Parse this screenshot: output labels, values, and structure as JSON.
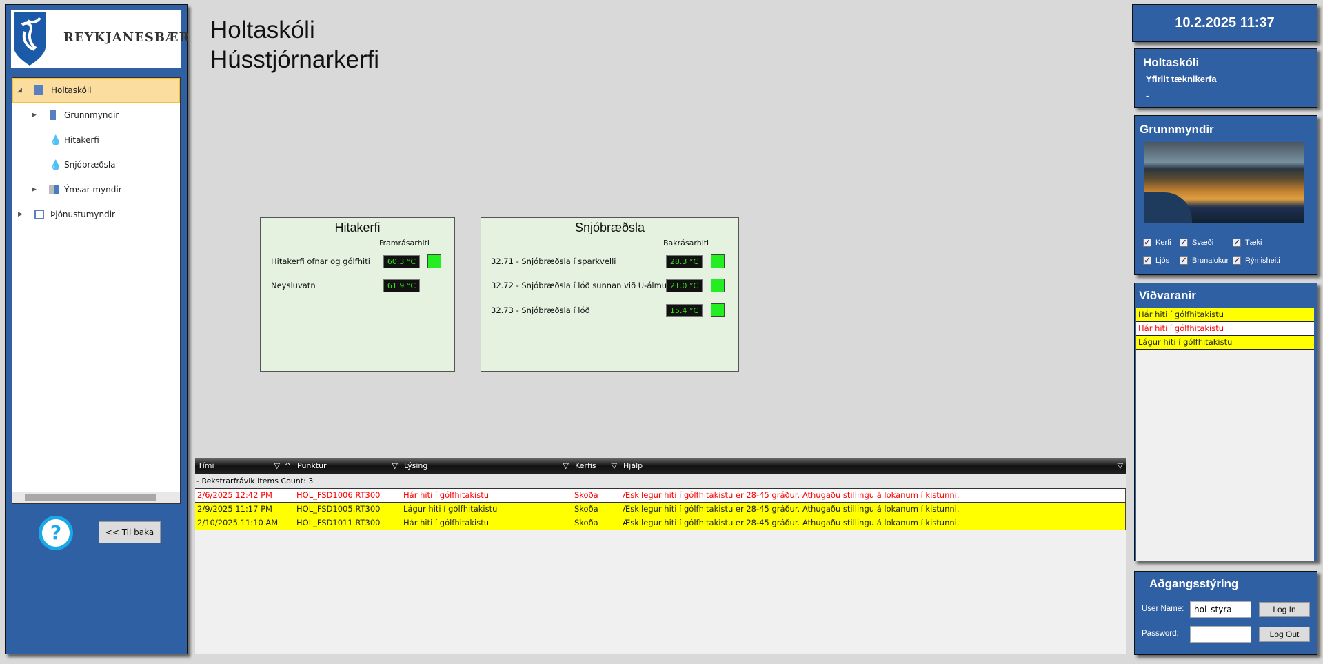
{
  "logo": {
    "text": "REYKJANESBÆR"
  },
  "tree": [
    {
      "label": "Holtaskóli",
      "icon": "building-icon",
      "selected": true
    },
    {
      "label": "Grunnmyndir",
      "icon": "floorplan-icon"
    },
    {
      "label": "Hitakerfi",
      "icon": "water-drop-icon"
    },
    {
      "label": "Snjóbræðsla",
      "icon": "water-drop-icon"
    },
    {
      "label": "Ýmsar myndir",
      "icon": "tiles-icon"
    },
    {
      "label": "Þjónustumyndir",
      "icon": "monitor-icon"
    }
  ],
  "left": {
    "help": "?",
    "back": "<< Til baka"
  },
  "title": {
    "line1": "Holtaskóli",
    "line2": "Hússtjórnarkerfi"
  },
  "hitakerfi": {
    "title": "Hitakerfi",
    "col": "Framrásarhiti",
    "rows": [
      {
        "label": "Hitakerfi ofnar og gólfhiti",
        "value": "60.3 °C",
        "status": "ok"
      },
      {
        "label": "Neysluvatn",
        "value": "61.9 °C"
      }
    ]
  },
  "snjo": {
    "title": "Snjóbræðsla",
    "col": "Bakrásarhiti",
    "rows": [
      {
        "label": "32.71 - Snjóbræðsla í sparkvelli",
        "value": "28.3 °C",
        "status": "ok"
      },
      {
        "label": "32.72 - Snjóbræðsla í lóð sunnan við U-álmu",
        "value": "21.0 °C",
        "status": "ok"
      },
      {
        "label": "32.73 - Snjóbræðsla í lóð",
        "value": "15.4 °C",
        "status": "ok"
      }
    ]
  },
  "grid": {
    "columns": [
      "Tími",
      "Punktur",
      "Lýsing",
      "Kerfis",
      "Hjálp"
    ],
    "group": "- Rekstrarfrávik Items Count: 3",
    "rows": [
      [
        "2/6/2025 12:42 PM",
        "HOL_FSD1006.RT300",
        "Hár hiti í gólfhitakistu",
        "Skoða",
        "Æskilegur hiti í gólfhitakistu er 28-45 gráður. Athugaðu stillingu á lokanum í kistunni."
      ],
      [
        "2/9/2025 11:17 PM",
        "HOL_FSD1005.RT300",
        "Lágur hiti í gólfhitakistu",
        "Skoða",
        "Æskilegur hiti í gólfhitakistu er 28-45 gráður. Athugaðu stillingu á lokanum í kistunni."
      ],
      [
        "2/10/2025 11:10 AM",
        "HOL_FSD1011.RT300",
        "Hár hiti í gólfhitakistu",
        "Skoða",
        "Æskilegur hiti í gólfhitakistu er 28-45 gráður. Athugaðu stillingu á lokanum í kistunni."
      ]
    ]
  },
  "right": {
    "datetime": "10.2.2025 11:37",
    "info": {
      "title": "Holtaskóli",
      "subtitle": "Yfirlit tæknikerfa",
      "detail": "-"
    },
    "grunn": {
      "title": "Grunnmyndir",
      "checks": [
        "Kerfi",
        "Svæði",
        "Tæki",
        "Ljós",
        "Brunalokur",
        "Rýmisheiti"
      ]
    },
    "vidv": {
      "title": "Viðvaranir",
      "items": [
        "Hár hiti í gólfhitakistu",
        "Hár hiti í gólfhitakistu",
        "Lágur hiti í gólfhitakistu"
      ]
    },
    "acc": {
      "title": "Aðgangsstýring",
      "user_label": "User Name:",
      "user_value": "hol_styra",
      "pass_label": "Password:",
      "login": "Log In",
      "logout": "Log Out"
    }
  },
  "colors": {
    "panel": "#3060a4",
    "warn": "#ffff00",
    "alarm": "#ff0000",
    "ok": "#22ee22"
  }
}
